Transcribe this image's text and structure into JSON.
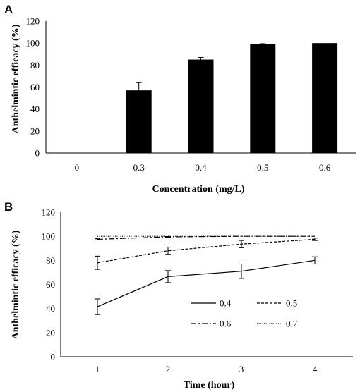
{
  "chart_data": [
    {
      "panel_label": "A",
      "type": "bar",
      "xlabel": "Concentration (mg/L)",
      "ylabel": "Anthelmintic efficacy (%)",
      "ylim": [
        0,
        120
      ],
      "yticks": [
        "0",
        "20",
        "40",
        "60",
        "80",
        "100",
        "120"
      ],
      "categories": [
        "0",
        "0.3",
        "0.4",
        "0.5",
        "0.6"
      ],
      "values": [
        0,
        57,
        85,
        99,
        100
      ],
      "errors": [
        0,
        7,
        2,
        0.5,
        0
      ],
      "bar_color": "#000000",
      "grid": false
    },
    {
      "panel_label": "B",
      "type": "line",
      "xlabel": "Time (hour)",
      "ylabel": "Anthelmintic efficacy (%)",
      "ylim": [
        0,
        120
      ],
      "yticks": [
        "0",
        "20",
        "40",
        "60",
        "80",
        "100",
        "120"
      ],
      "x": [
        "1",
        "2",
        "3",
        "4"
      ],
      "legend_position": "bottom-right",
      "grid": false,
      "series": [
        {
          "name": "0.4",
          "style": "solid",
          "values": [
            41.5,
            66.5,
            71,
            80
          ],
          "errors": [
            6.5,
            5,
            6,
            3
          ]
        },
        {
          "name": "0.5",
          "style": "dashed",
          "values": [
            78,
            88,
            93.5,
            97.5
          ],
          "errors": [
            5.5,
            3,
            3,
            1
          ]
        },
        {
          "name": "0.6",
          "style": "dashdot",
          "values": [
            97.5,
            99.5,
            100,
            100
          ],
          "errors": [
            0.5,
            0.3,
            0,
            0
          ]
        },
        {
          "name": "0.7",
          "style": "dotted",
          "values": [
            100,
            100,
            100,
            100
          ],
          "errors": [
            0,
            0,
            0,
            0
          ]
        }
      ]
    }
  ]
}
